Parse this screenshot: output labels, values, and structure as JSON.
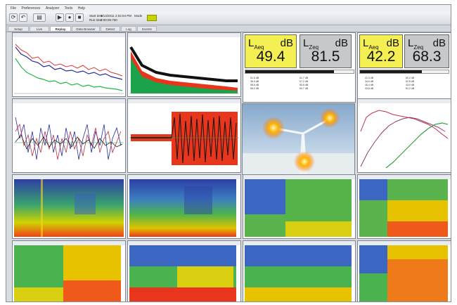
{
  "menu": [
    "File",
    "Preferences",
    "Analyzer",
    "Tools",
    "Help"
  ],
  "toolbar_info": {
    "line1_label": "Start time",
    "line1_value": "6/13/2011 2:02:04 PM",
    "line2_label": "Run time",
    "line2_value": "0:00:05:750",
    "status_label": "Mode"
  },
  "tabs": [
    "Setup",
    "Live",
    "Replay",
    "Data Browser",
    "Detect",
    "Log",
    "Events"
  ],
  "active_tab": "Replay",
  "meters": [
    {
      "left_symbol": "L",
      "left_sub": "Aeq",
      "left_unit": "dB",
      "left_value": "49.4",
      "right_symbol": "L",
      "right_sub": "Zeq",
      "right_unit": "dB",
      "right_value": "81.5",
      "level_fraction": 0.82,
      "table": [
        [
          "51.5 dB",
          "61.7 dB"
        ],
        [
          "36.9 dB",
          "57.2 dB"
        ],
        [
          "58.6 dB",
          "55.8 dB"
        ],
        [
          "56.2 dB",
          "60.7 dB"
        ]
      ]
    },
    {
      "left_symbol": "L",
      "left_sub": "Aeq",
      "left_unit": "dB",
      "left_value": "42.2",
      "right_symbol": "L",
      "right_sub": "Zeq",
      "right_unit": "dB",
      "right_value": "68.3",
      "level_fraction": 0.7,
      "table": [
        [
          "41.3 dB",
          "60.2 dB"
        ],
        [
          "34.6 dB",
          "52.8 dB"
        ],
        [
          "46.4 dB",
          "43.0 dB"
        ],
        [
          "43.8 dB",
          "51.2 dB"
        ]
      ]
    }
  ],
  "colors": {
    "meter_left_bg": "#f4ef52",
    "meter_right_bg": "#c6c9cc",
    "led": "#c7d400"
  },
  "icons": [
    "refresh-icon",
    "chart-icon",
    "play-icon",
    "stop-icon",
    "wind-turbine-photo"
  ]
}
